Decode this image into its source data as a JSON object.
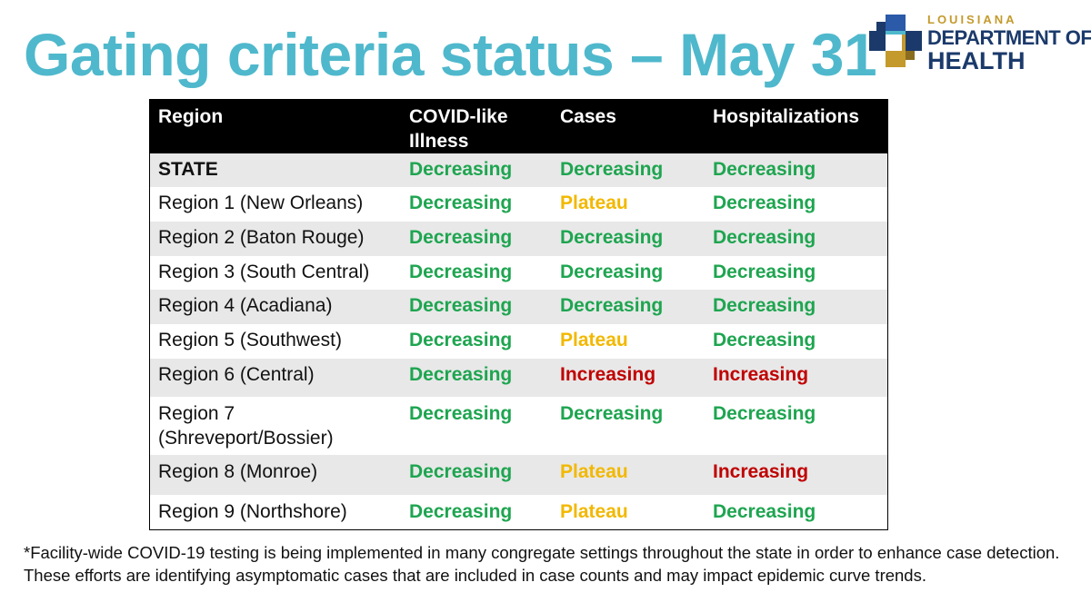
{
  "title": "Gating criteria status – May 31",
  "logo": {
    "small": "LOUISIANA",
    "line1": "DEPARTMENT OF",
    "line2": "HEALTH"
  },
  "colors": {
    "title": "#4fb8cc",
    "Decreasing": "#1ea550",
    "Plateau": "#f2b800",
    "Increasing": "#c00000",
    "logo_blue": "#1b3a6b",
    "logo_gold": "#c49a2c"
  },
  "table": {
    "headers": [
      "Region",
      "COVID-like Illness",
      "Cases",
      "Hospitalizations"
    ],
    "rows": [
      {
        "region": "STATE",
        "illness": "Decreasing",
        "cases": "Decreasing",
        "hosp": "Decreasing"
      },
      {
        "region": "Region 1 (New Orleans)",
        "illness": "Decreasing",
        "cases": "Plateau",
        "hosp": "Decreasing"
      },
      {
        "region": "Region 2 (Baton Rouge)",
        "illness": "Decreasing",
        "cases": "Decreasing",
        "hosp": "Decreasing"
      },
      {
        "region": "Region 3 (South Central)",
        "illness": "Decreasing",
        "cases": "Decreasing",
        "hosp": "Decreasing"
      },
      {
        "region": "Region 4 (Acadiana)",
        "illness": "Decreasing",
        "cases": "Decreasing",
        "hosp": "Decreasing"
      },
      {
        "region": "Region 5 (Southwest)",
        "illness": "Decreasing",
        "cases": "Plateau",
        "hosp": "Decreasing"
      },
      {
        "region": "Region 6 (Central)",
        "illness": "Decreasing",
        "cases": "Increasing",
        "hosp": "Increasing"
      },
      {
        "region": "Region 7 (Shreveport/Bossier)",
        "illness": "Decreasing",
        "cases": "Decreasing",
        "hosp": "Decreasing"
      },
      {
        "region": "Region 8 (Monroe)",
        "illness": "Decreasing",
        "cases": "Plateau",
        "hosp": "Increasing"
      },
      {
        "region": "Region 9 (Northshore)",
        "illness": "Decreasing",
        "cases": "Plateau",
        "hosp": "Decreasing"
      }
    ]
  },
  "footnote": "*Facility-wide COVID-19 testing is being implemented in many congregate settings throughout the state in order to enhance case detection. These efforts are identifying asymptomatic cases that are included in case counts and may impact epidemic curve trends."
}
